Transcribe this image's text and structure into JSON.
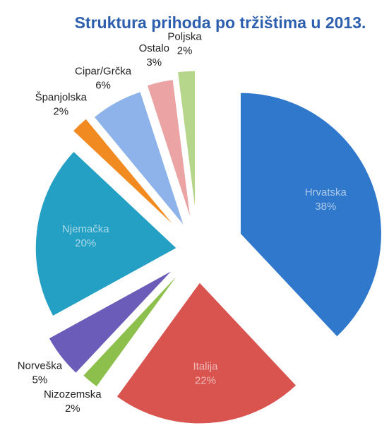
{
  "chart_data": {
    "type": "pie",
    "title": "Struktura prihoda po tržištima u 2013.",
    "categories": [
      "Hrvatska",
      "Italija",
      "Nizozemska",
      "Norveška",
      "Njemačka",
      "Španjolska",
      "Cipar/Grčka",
      "Ostalo",
      "Poljska"
    ],
    "values": [
      38,
      22,
      2,
      5,
      20,
      2,
      6,
      3,
      2
    ],
    "value_labels": [
      "38%",
      "22%",
      "2%",
      "5%",
      "20%",
      "2%",
      "6%",
      "3%",
      "2%"
    ],
    "colors": [
      "#2f78cc",
      "#d9534f",
      "#8cbf4c",
      "#6a5cb8",
      "#24a0c4",
      "#f28a22",
      "#8db3ea",
      "#eba3a3",
      "#b6d68c"
    ]
  }
}
